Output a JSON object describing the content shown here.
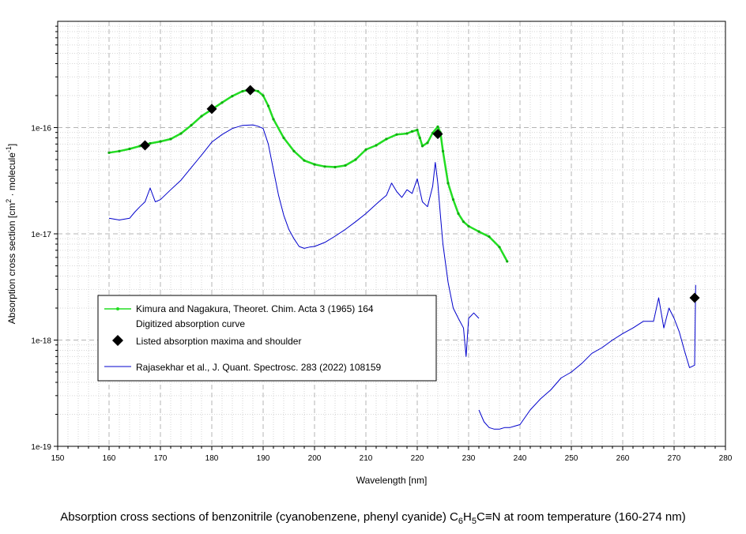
{
  "chart_data": {
    "type": "line",
    "title": "",
    "xlabel": "Wavelength [nm]",
    "ylabel_parts": [
      "Absorption cross section [cm",
      "2",
      " · molecule",
      "-1",
      "]"
    ],
    "xlim": [
      150,
      280
    ],
    "ylim": [
      1e-19,
      1e-15
    ],
    "yscale": "log",
    "grid": true,
    "x_ticks": [
      150,
      160,
      170,
      180,
      190,
      200,
      210,
      220,
      230,
      240,
      250,
      260,
      270,
      280
    ],
    "x_tick_labels": [
      "150",
      "160",
      "170",
      "180",
      "190",
      "200",
      "210",
      "220",
      "230",
      "240",
      "250",
      "260",
      "270",
      "280"
    ],
    "y_ticks": [
      1e-19,
      1e-18,
      1e-17,
      1e-16
    ],
    "y_tick_labels": [
      "1e-19",
      "1e-18",
      "1e-17",
      "1e-16"
    ],
    "legend_position": "middle-left",
    "series": [
      {
        "name": "Kimura and Nagakura, Theoret. Chim. Acta 3 (1965) 164",
        "name_line2": "Digitized absorption curve",
        "color": "#22dd22",
        "style": "line-with-dots",
        "x": [
          160,
          162,
          164,
          166,
          168,
          170,
          172,
          174,
          176,
          178,
          180,
          182,
          184,
          186,
          187.5,
          189,
          190,
          191,
          192,
          194,
          196,
          198,
          200,
          202,
          204,
          206,
          208,
          210,
          212,
          214,
          216,
          218,
          219,
          220,
          220.5,
          221,
          222,
          223,
          224,
          224.5,
          225,
          226,
          227,
          228,
          229,
          230,
          232,
          234,
          236,
          237.5
        ],
        "y": [
          5.8e-17,
          6e-17,
          6.3e-17,
          6.7e-17,
          7.1e-17,
          7.4e-17,
          7.8e-17,
          8.8e-17,
          1.05e-16,
          1.28e-16,
          1.48e-16,
          1.72e-16,
          1.98e-16,
          2.2e-16,
          2.27e-16,
          2.2e-16,
          2e-16,
          1.6e-16,
          1.2e-16,
          8e-17,
          6e-17,
          4.9e-17,
          4.5e-17,
          4.3e-17,
          4.25e-17,
          4.4e-17,
          5e-17,
          6.2e-17,
          6.8e-17,
          7.8e-17,
          8.6e-17,
          8.8e-17,
          9.2e-17,
          9.5e-17,
          8e-17,
          6.7e-17,
          7.2e-17,
          8.9e-17,
          1.02e-16,
          9e-17,
          6e-17,
          3e-17,
          2.1e-17,
          1.55e-17,
          1.3e-17,
          1.18e-17,
          1.05e-17,
          9.4e-18,
          7.5e-18,
          5.5e-18
        ]
      },
      {
        "name": "Listed absorption maxima and shoulder",
        "color": "#000000",
        "style": "diamond-markers",
        "x": [
          167,
          180,
          187.5,
          224,
          274
        ],
        "y": [
          6.8e-17,
          1.5e-16,
          2.25e-16,
          8.7e-17,
          2.5e-18
        ]
      },
      {
        "name": "Rajasekhar et al., J. Quant. Spectrosc. 283 (2022) 108159",
        "color": "#0000cc",
        "style": "line",
        "segments": [
          {
            "x": [
              160,
              162,
              164,
              165,
              166,
              167,
              168,
              169,
              170,
              172,
              174,
              176,
              178,
              180,
              182,
              184,
              186,
              188,
              189,
              190,
              191,
              192,
              193,
              194,
              195,
              196,
              197,
              198,
              199,
              200,
              202,
              204,
              206,
              208,
              210,
              212,
              213,
              214,
              215,
              216,
              217,
              218,
              219,
              220,
              221,
              222,
              223,
              223.5,
              224,
              224.5,
              225,
              226,
              227,
              228,
              229,
              229.5,
              230,
              231,
              232
            ],
            "y": [
              1.4e-17,
              1.35e-17,
              1.4e-17,
              1.6e-17,
              1.8e-17,
              2e-17,
              2.7e-17,
              2e-17,
              2.1e-17,
              2.6e-17,
              3.2e-17,
              4.2e-17,
              5.5e-17,
              7.3e-17,
              8.6e-17,
              9.8e-17,
              1.05e-16,
              1.06e-16,
              1.03e-16,
              9.8e-17,
              7e-17,
              4e-17,
              2.3e-17,
              1.5e-17,
              1.1e-17,
              9e-18,
              7.6e-18,
              7.3e-18,
              7.5e-18,
              7.6e-18,
              8.3e-18,
              9.5e-18,
              1.1e-17,
              1.3e-17,
              1.55e-17,
              1.9e-17,
              2.1e-17,
              2.3e-17,
              3e-17,
              2.5e-17,
              2.2e-17,
              2.6e-17,
              2.4e-17,
              3.3e-17,
              2e-17,
              1.8e-17,
              2.8e-17,
              4.7e-17,
              3e-17,
              1.5e-17,
              8e-18,
              3.5e-18,
              2e-18,
              1.6e-18,
              1.3e-18,
              7e-19,
              1.6e-18,
              1.8e-18,
              1.6e-18
            ]
          },
          {
            "x": [
              232,
              233,
              234,
              235,
              236,
              237,
              238,
              239,
              240,
              242,
              244,
              246,
              248,
              250,
              252,
              254,
              256,
              258,
              260,
              262,
              264,
              266,
              267,
              268,
              269,
              270,
              271,
              272,
              273,
              274,
              274.2
            ],
            "y": [
              2.2e-19,
              1.7e-19,
              1.5e-19,
              1.45e-19,
              1.45e-19,
              1.5e-19,
              1.5e-19,
              1.55e-19,
              1.6e-19,
              2.2e-19,
              2.8e-19,
              3.4e-19,
              4.4e-19,
              5e-19,
              6e-19,
              7.5e-19,
              8.5e-19,
              1e-18,
              1.15e-18,
              1.3e-18,
              1.5e-18,
              1.5e-18,
              2.5e-18,
              1.3e-18,
              2e-18,
              1.6e-18,
              1.2e-18,
              8e-19,
              5.5e-19,
              5.8e-19,
              3.3e-18
            ]
          }
        ]
      }
    ]
  },
  "caption": {
    "prefix": "Absorption cross sections of benzonitrile (cyanobenzene, phenyl cyanide) C",
    "sub1": "6",
    "mid": "H",
    "sub2": "5",
    "suffix": "C≡N at room temperature (160-274 nm)"
  }
}
